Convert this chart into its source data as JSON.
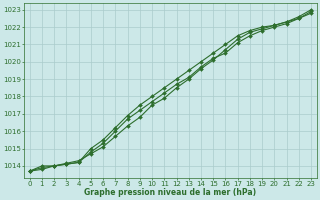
{
  "bg_color": "#cce8e8",
  "grid_color": "#aacccc",
  "line_color": "#2d6e2d",
  "title": "Graphe pression niveau de la mer (hPa)",
  "ylim": [
    1013.3,
    1023.4
  ],
  "xlim": [
    -0.5,
    23.5
  ],
  "yticks": [
    1014,
    1015,
    1016,
    1017,
    1018,
    1019,
    1020,
    1021,
    1022,
    1023
  ],
  "xticks": [
    0,
    1,
    2,
    3,
    4,
    5,
    6,
    7,
    8,
    9,
    10,
    11,
    12,
    13,
    14,
    15,
    16,
    17,
    18,
    19,
    20,
    21,
    22,
    23
  ],
  "series": [
    [
      1013.7,
      1013.9,
      1014.0,
      1014.1,
      1014.2,
      1014.8,
      1015.3,
      1016.0,
      1016.7,
      1017.2,
      1017.7,
      1018.2,
      1018.7,
      1019.1,
      1019.7,
      1020.2,
      1020.5,
      1021.1,
      1021.5,
      1021.8,
      1022.0,
      1022.2,
      1022.5,
      1022.9
    ],
    [
      1013.7,
      1013.8,
      1014.0,
      1014.1,
      1014.2,
      1015.0,
      1015.5,
      1016.2,
      1016.9,
      1017.5,
      1018.0,
      1018.5,
      1019.0,
      1019.5,
      1020.0,
      1020.5,
      1021.0,
      1021.5,
      1021.8,
      1022.0,
      1022.1,
      1022.3,
      1022.6,
      1023.0
    ],
    [
      1013.7,
      1014.0,
      1014.0,
      1014.15,
      1014.3,
      1014.7,
      1015.1,
      1015.7,
      1016.3,
      1016.8,
      1017.5,
      1017.9,
      1018.5,
      1019.0,
      1019.6,
      1020.1,
      1020.7,
      1021.3,
      1021.7,
      1021.9,
      1022.1,
      1022.3,
      1022.5,
      1022.8
    ]
  ],
  "marker": "D",
  "markersize": 2.0,
  "linewidth": 0.8,
  "figsize": [
    3.2,
    2.0
  ],
  "dpi": 100,
  "tick_labelsize": 5,
  "xlabel_fontsize": 5.5,
  "ytick_labelsize": 5
}
